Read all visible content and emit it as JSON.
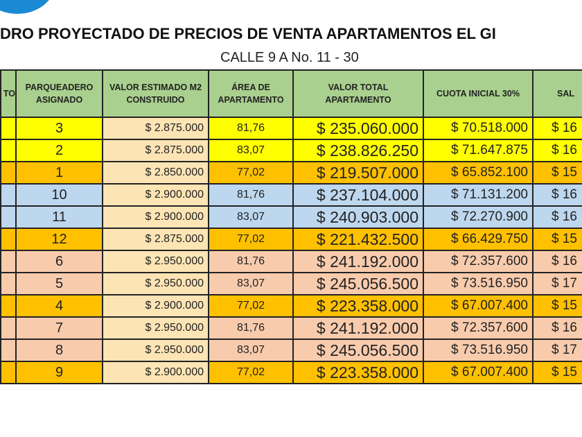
{
  "title": "DRO PROYECTADO DE PRECIOS DE VENTA APARTAMENTOS EL GI",
  "subtitle": "CALLE 9 A No. 11 - 30",
  "headers": [
    "TO",
    "PARQUEADERO ASIGNADO",
    "VALOR ESTIMADO M2 CONSTRUIDO",
    "ÁREA DE APARTAMENTO",
    "VALOR TOTAL APARTAMENTO",
    "CUOTA INICIAL 30%",
    "SAL"
  ],
  "colors": {
    "header": "#a9d08e",
    "yellow": "#ffff00",
    "orange": "#ffc000",
    "blue": "#bdd7ee",
    "peach": "#f8cbad",
    "m2": "#fce4b4"
  },
  "rows": [
    {
      "t": "Y",
      "p": "3",
      "m2": "$ 2.875.000",
      "a": "81,76",
      "v": "$ 235.060.000",
      "c": "$ 70.518.000",
      "s": "$ 16"
    },
    {
      "t": "Y",
      "p": "2",
      "m2": "$ 2.875.000",
      "a": "83,07",
      "v": "$ 238.826.250",
      "c": "$ 71.647.875",
      "s": "$ 16"
    },
    {
      "t": "O",
      "p": "1",
      "m2": "$ 2.850.000",
      "a": "77,02",
      "v": "$ 219.507.000",
      "c": "$ 65.852.100",
      "s": "$ 15"
    },
    {
      "t": "B",
      "p": "10",
      "m2": "$ 2.900.000",
      "a": "81,76",
      "v": "$ 237.104.000",
      "c": "$ 71.131.200",
      "s": "$ 16"
    },
    {
      "t": "B",
      "p": "11",
      "m2": "$ 2.900.000",
      "a": "83,07",
      "v": "$ 240.903.000",
      "c": "$ 72.270.900",
      "s": "$ 16"
    },
    {
      "t": "O",
      "p": "12",
      "m2": "$ 2.875.000",
      "a": "77,02",
      "v": "$ 221.432.500",
      "c": "$ 66.429.750",
      "s": "$ 15"
    },
    {
      "t": "P",
      "p": "6",
      "m2": "$ 2.950.000",
      "a": "81,76",
      "v": "$ 241.192.000",
      "c": "$ 72.357.600",
      "s": "$ 16"
    },
    {
      "t": "P",
      "p": "5",
      "m2": "$ 2.950.000",
      "a": "83,07",
      "v": "$ 245.056.500",
      "c": "$ 73.516.950",
      "s": "$ 17"
    },
    {
      "t": "O",
      "p": "4",
      "m2": "$ 2.900.000",
      "a": "77,02",
      "v": "$ 223.358.000",
      "c": "$ 67.007.400",
      "s": "$ 15"
    },
    {
      "t": "P",
      "p": "7",
      "m2": "$ 2.950.000",
      "a": "81,76",
      "v": "$ 241.192.000",
      "c": "$ 72.357.600",
      "s": "$ 16"
    },
    {
      "t": "P",
      "p": "8",
      "m2": "$ 2.950.000",
      "a": "83,07",
      "v": "$ 245.056.500",
      "c": "$ 73.516.950",
      "s": "$ 17"
    },
    {
      "t": "O",
      "p": "9",
      "m2": "$ 2.900.000",
      "a": "77,02",
      "v": "$ 223.358.000",
      "c": "$ 67.007.400",
      "s": "$ 15"
    }
  ]
}
